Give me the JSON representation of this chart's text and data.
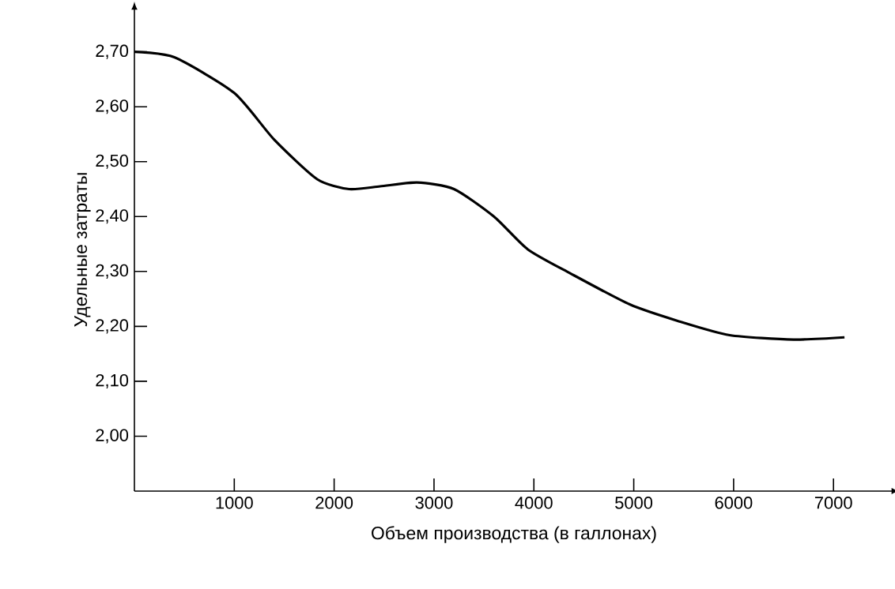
{
  "chart_data": {
    "type": "line",
    "xlabel": "Объем производства (в галлонах)",
    "ylabel": "Удельные затраты",
    "x": [
      0,
      400,
      1000,
      1400,
      1830,
      2150,
      2460,
      2830,
      3200,
      3600,
      3940,
      4370,
      4960,
      5440,
      5960,
      6600,
      7110
    ],
    "values": [
      2.7,
      2.69,
      2.625,
      2.54,
      2.468,
      2.45,
      2.455,
      2.462,
      2.45,
      2.4,
      2.34,
      2.296,
      2.24,
      2.21,
      2.184,
      2.176,
      2.18
    ],
    "color": "#000000",
    "xlim": [
      0,
      7600
    ],
    "ylim": [
      1.9,
      2.78
    ],
    "xticks": [
      1000,
      2000,
      3000,
      4000,
      5000,
      6000,
      7000
    ],
    "yticks": [
      {
        "value": 2.0,
        "label": "2,00"
      },
      {
        "value": 2.1,
        "label": "2,10"
      },
      {
        "value": 2.2,
        "label": "2,20"
      },
      {
        "value": 2.3,
        "label": "2,30"
      },
      {
        "value": 2.4,
        "label": "2,40"
      },
      {
        "value": 2.5,
        "label": "2,50"
      },
      {
        "value": 2.6,
        "label": "2,60"
      },
      {
        "value": 2.7,
        "label": "2,70"
      }
    ],
    "grid": false,
    "marker": "none",
    "line_style": "solid"
  }
}
